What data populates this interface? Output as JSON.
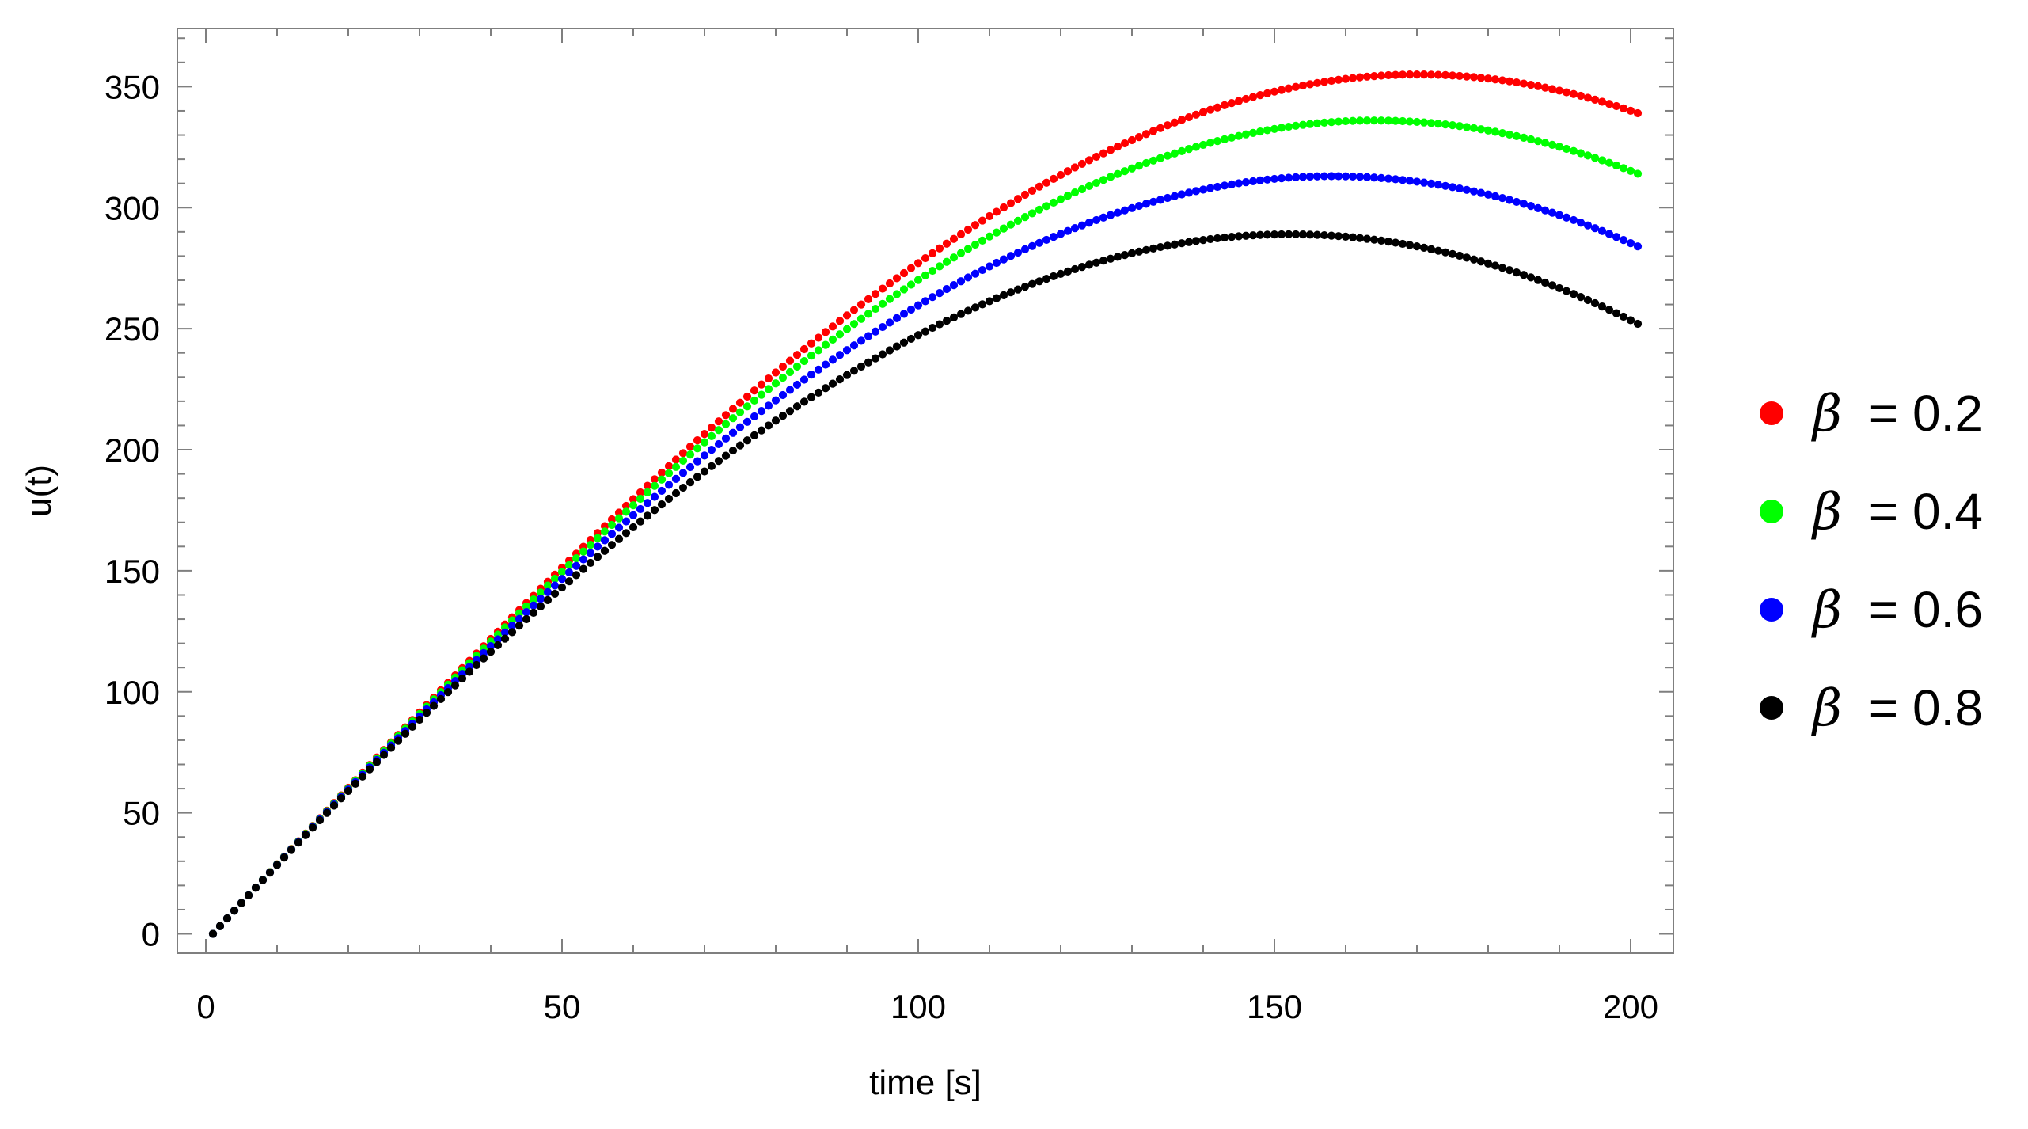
{
  "chart_data": {
    "type": "scatter",
    "title": "",
    "xlabel": "time [s]",
    "ylabel": "u(t)",
    "xlim": [
      -4,
      206
    ],
    "ylim": [
      -8,
      374
    ],
    "x_ticks": [
      0,
      50,
      100,
      150,
      200
    ],
    "y_ticks": [
      0,
      50,
      100,
      150,
      200,
      250,
      300,
      350
    ],
    "x_start": 1,
    "x_end": 201,
    "x_step": 1,
    "grid": false,
    "legend_position": "right",
    "series": [
      {
        "name": "β = 0.2",
        "beta_symbol": "β",
        "beta_value": "= 0.2",
        "color": "#ff0000",
        "peak": {
          "x": 170,
          "y": 355
        },
        "end": {
          "x": 201,
          "y": 339
        },
        "initial_slope": 3.2
      },
      {
        "name": "β = 0.4",
        "beta_symbol": "β",
        "beta_value": "= 0.4",
        "color": "#00ff00",
        "peak": {
          "x": 164,
          "y": 336
        },
        "end": {
          "x": 201,
          "y": 314
        },
        "initial_slope": 3.2
      },
      {
        "name": "β = 0.6",
        "beta_symbol": "β",
        "beta_value": "= 0.6",
        "color": "#0000ff",
        "peak": {
          "x": 158,
          "y": 313
        },
        "end": {
          "x": 201,
          "y": 284
        },
        "initial_slope": 3.2
      },
      {
        "name": "β = 0.8",
        "beta_symbol": "β",
        "beta_value": "= 0.8",
        "color": "#000000",
        "peak": {
          "x": 152,
          "y": 289
        },
        "end": {
          "x": 201,
          "y": 252
        },
        "initial_slope": 3.2
      }
    ]
  }
}
